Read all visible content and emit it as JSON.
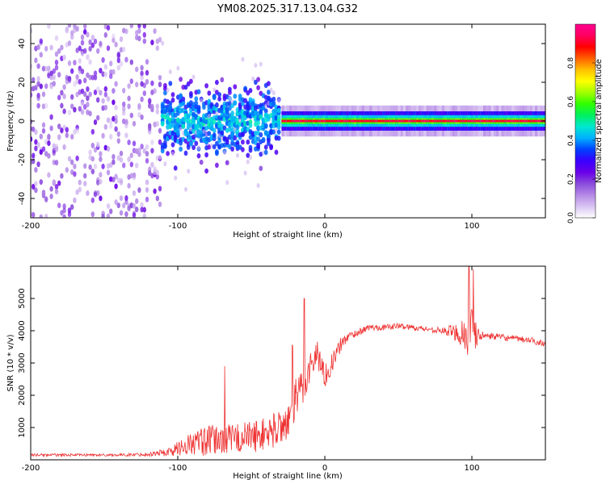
{
  "title": "YM08.2025.317.13.04.G32",
  "colors": {
    "snr_line": "#ee3333",
    "colorscale": [
      "#ffffff",
      "#d9c4f2",
      "#b58ae6",
      "#8a4bdc",
      "#6a00e8",
      "#3a00ff",
      "#0040ff",
      "#00b0ff",
      "#00e8d0",
      "#00f060",
      "#30ff00",
      "#a0ff00",
      "#ffff00",
      "#ffc000",
      "#ff6000",
      "#ff0000",
      "#ff0060",
      "#ff0090"
    ]
  },
  "chart_data": [
    {
      "type": "heatmap",
      "xlabel": "Height of straight line (km)",
      "ylabel": "Frequency (Hz)",
      "xlim": [
        -200,
        150
      ],
      "ylim": [
        -50,
        50
      ],
      "xticks": [
        -200,
        -100,
        0,
        100
      ],
      "xtick_labels": [
        "-200",
        "-100",
        "0",
        "100"
      ],
      "yticks": [
        -40,
        -20,
        0,
        20,
        40
      ],
      "ytick_labels": [
        "-40",
        "-20",
        "0",
        "20",
        "40"
      ],
      "colorbar": {
        "label": "Normalized spectral amplitude",
        "range": [
          0,
          1
        ],
        "ticks": [
          0,
          0.2,
          0.4,
          0.6,
          0.8
        ],
        "tick_labels": [
          "0.0",
          "0.2",
          "0.4",
          "0.6",
          "0.8"
        ]
      },
      "regions": [
        {
          "x": [
            -200,
            -112
          ],
          "freq_spread": 50,
          "amplitude": [
            0.05,
            0.25
          ],
          "description": "broadband noise"
        },
        {
          "x": [
            -115,
            -30
          ],
          "freq_spread": 12,
          "amplitude": [
            0.2,
            0.45
          ],
          "description": "scattered energy near 0 Hz"
        },
        {
          "x": [
            -30,
            150
          ],
          "freq_spread": 3,
          "amplitude": [
            0.5,
            0.95
          ],
          "description": "narrow band at 0 Hz"
        }
      ]
    },
    {
      "type": "line",
      "xlabel": "Height of straight line (km)",
      "ylabel": "SNR (10 * v/v)",
      "xlim": [
        -200,
        150
      ],
      "ylim": [
        0,
        6000
      ],
      "xticks": [
        -200,
        -100,
        0,
        100
      ],
      "xtick_labels": [
        "-200",
        "-100",
        "0",
        "100"
      ],
      "yticks": [
        1000,
        2000,
        3000,
        4000,
        5000
      ],
      "ytick_labels": [
        "1000",
        "2000",
        "3000",
        "4000",
        "5000"
      ],
      "series": [
        {
          "name": "SNR",
          "x": [
            -200,
            -180,
            -160,
            -140,
            -120,
            -105,
            -95,
            -85,
            -75,
            -65,
            -55,
            -45,
            -35,
            -25,
            -20,
            -15,
            -10,
            -5,
            0,
            5,
            10,
            15,
            20,
            25,
            30,
            40,
            50,
            60,
            70,
            80,
            90,
            95,
            100,
            105,
            110,
            120,
            130,
            140,
            150
          ],
          "y": [
            150,
            150,
            150,
            150,
            170,
            250,
            450,
            550,
            600,
            650,
            700,
            750,
            900,
            1200,
            1800,
            2300,
            2900,
            3300,
            2600,
            3000,
            3500,
            3800,
            3900,
            4000,
            4100,
            4100,
            4150,
            4100,
            4050,
            4000,
            3950,
            3900,
            3850,
            3850,
            3850,
            3800,
            3750,
            3700,
            3600
          ],
          "noise": [
            40,
            40,
            40,
            40,
            60,
            150,
            300,
            450,
            500,
            450,
            500,
            500,
            550,
            600,
            700,
            700,
            500,
            450,
            350,
            300,
            250,
            150,
            120,
            100,
            100,
            90,
            90,
            90,
            90,
            100,
            300,
            700,
            900,
            150,
            100,
            100,
            100,
            100,
            100
          ]
        }
      ],
      "spikes": [
        {
          "x": -68,
          "y": 2900
        },
        {
          "x": -22,
          "y": 3550
        },
        {
          "x": -14,
          "y": 5000
        },
        {
          "x": 98,
          "y": 6000
        },
        {
          "x": 101,
          "y": 5900
        }
      ]
    }
  ]
}
